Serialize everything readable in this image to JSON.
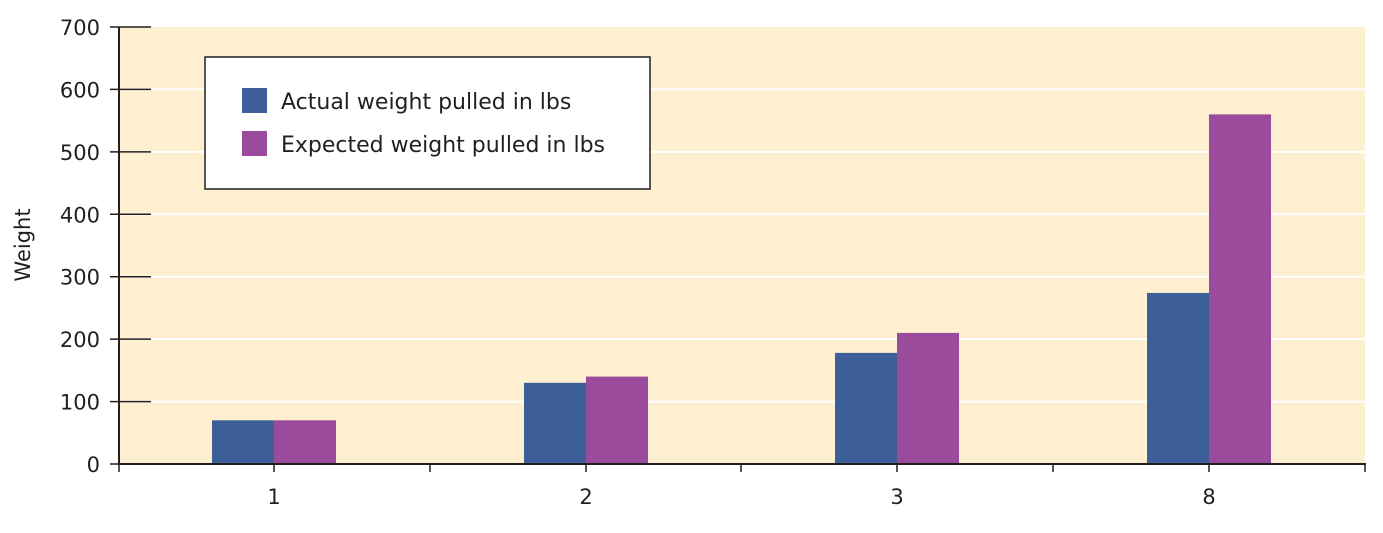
{
  "colors": {
    "plot_background": "#fdefcf",
    "gridline": "#ffffff",
    "series_actual": "#3c5f99",
    "series_expected": "#9a4b9b",
    "axis": "#231f20",
    "legend_background": "#ffffff"
  },
  "chart_data": {
    "type": "bar",
    "title": "",
    "xlabel": "",
    "ylabel": "Weight",
    "categories": [
      "1",
      "2",
      "3",
      "8"
    ],
    "ylim": [
      0,
      700
    ],
    "yticks": [
      0,
      100,
      200,
      300,
      400,
      500,
      600,
      700
    ],
    "grid": true,
    "legend_position": "top-left",
    "series": [
      {
        "name": "Actual weight pulled in lbs",
        "color": "#3c5f99",
        "values": [
          70,
          130,
          178,
          274
        ]
      },
      {
        "name": "Expected weight pulled in lbs",
        "color": "#9a4b9b",
        "values": [
          70,
          140,
          210,
          560
        ]
      }
    ]
  }
}
